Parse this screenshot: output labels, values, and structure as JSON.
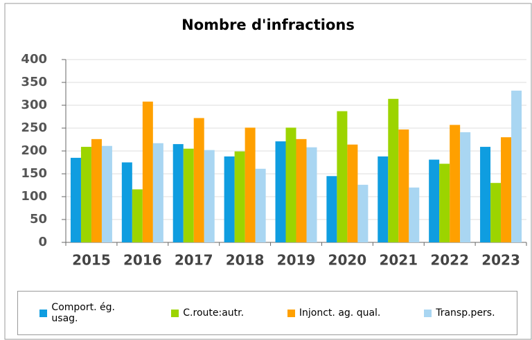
{
  "chart_data": {
    "type": "bar",
    "title": "Nombre d'infractions",
    "categories": [
      "2015",
      "2016",
      "2017",
      "2018",
      "2019",
      "2020",
      "2021",
      "2022",
      "2023"
    ],
    "series": [
      {
        "name": "Comport. ég. usag.",
        "color": "#0f9de0",
        "values": [
          185,
          175,
          215,
          188,
          221,
          145,
          188,
          181,
          209
        ]
      },
      {
        "name": "C.route:autr.",
        "color": "#9cd400",
        "values": [
          209,
          116,
          205,
          199,
          251,
          287,
          314,
          172,
          130
        ]
      },
      {
        "name": "Injonct. ag. qual.",
        "color": "#ffa000",
        "values": [
          226,
          308,
          272,
          251,
          226,
          214,
          247,
          257,
          230
        ]
      },
      {
        "name": "Transp.pers.",
        "color": "#a9d6f2",
        "values": [
          211,
          217,
          202,
          161,
          208,
          126,
          120,
          241,
          332
        ]
      }
    ],
    "ylim": [
      0,
      400
    ],
    "yticks": [
      0,
      50,
      100,
      150,
      200,
      250,
      300,
      350,
      400
    ],
    "grid": true,
    "legend": "bottom"
  }
}
